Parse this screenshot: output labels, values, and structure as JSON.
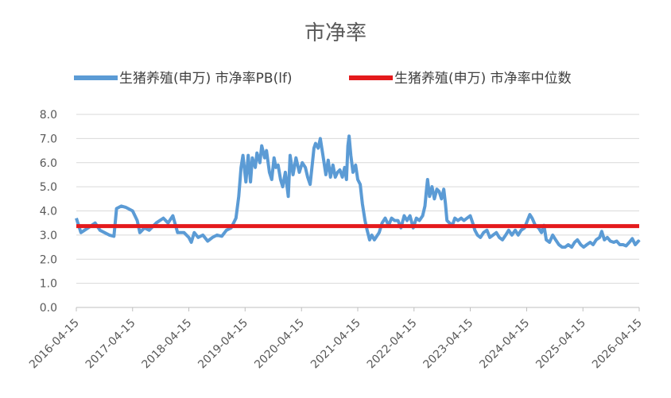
{
  "chart_data": {
    "type": "line",
    "title": "市净率",
    "xlabel": "",
    "ylabel": "",
    "ylim": [
      0,
      8
    ],
    "y_ticks": [
      "0.0",
      "1.0",
      "2.0",
      "3.0",
      "4.0",
      "5.0",
      "6.0",
      "7.0",
      "8.0"
    ],
    "x_range": [
      "2016-04-15",
      "2026-04-15"
    ],
    "x_ticks": [
      "2016-04-15",
      "2017-04-15",
      "2018-04-15",
      "2019-04-15",
      "2020-04-15",
      "2021-04-15",
      "2022-04-15",
      "2023-04-15",
      "2024-04-15",
      "2025-04-15",
      "2026-04-15"
    ],
    "grid": "horizontal",
    "legend_position": "top",
    "series": [
      {
        "name": "生猪养殖(申万) 市净率PB(lf)",
        "color": "#5B9BD5",
        "points": [
          [
            "2016-04-15",
            3.7
          ],
          [
            "2016-05-15",
            3.1
          ],
          [
            "2016-07-01",
            3.3
          ],
          [
            "2016-08-15",
            3.5
          ],
          [
            "2016-09-15",
            3.2
          ],
          [
            "2016-10-15",
            3.1
          ],
          [
            "2016-11-15",
            3.0
          ],
          [
            "2016-12-15",
            2.95
          ],
          [
            "2017-01-01",
            4.1
          ],
          [
            "2017-02-01",
            4.2
          ],
          [
            "2017-03-01",
            4.15
          ],
          [
            "2017-04-15",
            4.0
          ],
          [
            "2017-05-15",
            3.6
          ],
          [
            "2017-06-01",
            3.1
          ],
          [
            "2017-07-01",
            3.3
          ],
          [
            "2017-08-01",
            3.2
          ],
          [
            "2017-09-15",
            3.5
          ],
          [
            "2017-11-01",
            3.7
          ],
          [
            "2017-12-01",
            3.5
          ],
          [
            "2018-01-01",
            3.8
          ],
          [
            "2018-02-01",
            3.1
          ],
          [
            "2018-03-15",
            3.1
          ],
          [
            "2018-04-15",
            2.9
          ],
          [
            "2018-05-01",
            2.7
          ],
          [
            "2018-05-20",
            3.1
          ],
          [
            "2018-06-15",
            2.9
          ],
          [
            "2018-07-15",
            3.0
          ],
          [
            "2018-08-15",
            2.75
          ],
          [
            "2018-09-15",
            2.9
          ],
          [
            "2018-10-15",
            3.0
          ],
          [
            "2018-11-15",
            2.95
          ],
          [
            "2018-12-15",
            3.2
          ],
          [
            "2019-01-15",
            3.3
          ],
          [
            "2019-02-15",
            3.7
          ],
          [
            "2019-03-05",
            4.6
          ],
          [
            "2019-03-20",
            5.8
          ],
          [
            "2019-04-01",
            6.3
          ],
          [
            "2019-04-20",
            5.2
          ],
          [
            "2019-05-05",
            6.3
          ],
          [
            "2019-05-20",
            5.2
          ],
          [
            "2019-06-01",
            6.2
          ],
          [
            "2019-06-20",
            5.8
          ],
          [
            "2019-07-01",
            6.4
          ],
          [
            "2019-07-20",
            6.0
          ],
          [
            "2019-08-01",
            6.7
          ],
          [
            "2019-08-20",
            6.2
          ],
          [
            "2019-09-01",
            6.5
          ],
          [
            "2019-09-20",
            5.6
          ],
          [
            "2019-10-05",
            5.3
          ],
          [
            "2019-10-20",
            6.2
          ],
          [
            "2019-11-01",
            5.8
          ],
          [
            "2019-11-15",
            5.9
          ],
          [
            "2019-12-01",
            5.3
          ],
          [
            "2019-12-15",
            5.0
          ],
          [
            "2020-01-01",
            5.6
          ],
          [
            "2020-01-20",
            4.6
          ],
          [
            "2020-02-01",
            6.3
          ],
          [
            "2020-02-20",
            5.5
          ],
          [
            "2020-03-10",
            6.2
          ],
          [
            "2020-04-01",
            5.6
          ],
          [
            "2020-04-20",
            6.0
          ],
          [
            "2020-05-10",
            5.8
          ],
          [
            "2020-05-25",
            5.4
          ],
          [
            "2020-06-10",
            5.1
          ],
          [
            "2020-06-25",
            6.0
          ],
          [
            "2020-07-05",
            6.6
          ],
          [
            "2020-07-15",
            6.8
          ],
          [
            "2020-08-01",
            6.6
          ],
          [
            "2020-08-15",
            7.0
          ],
          [
            "2020-09-01",
            6.3
          ],
          [
            "2020-09-20",
            5.5
          ],
          [
            "2020-10-05",
            6.1
          ],
          [
            "2020-10-20",
            5.4
          ],
          [
            "2020-11-05",
            5.9
          ],
          [
            "2020-11-20",
            5.4
          ],
          [
            "2020-12-05",
            5.6
          ],
          [
            "2020-12-20",
            5.7
          ],
          [
            "2021-01-05",
            5.4
          ],
          [
            "2021-01-20",
            5.8
          ],
          [
            "2021-02-01",
            5.3
          ],
          [
            "2021-02-10",
            6.7
          ],
          [
            "2021-02-18",
            7.1
          ],
          [
            "2021-03-01",
            6.3
          ],
          [
            "2021-03-15",
            5.6
          ],
          [
            "2021-04-01",
            5.9
          ],
          [
            "2021-04-15",
            5.3
          ],
          [
            "2021-05-01",
            5.1
          ],
          [
            "2021-05-15",
            4.3
          ],
          [
            "2021-06-01",
            3.6
          ],
          [
            "2021-06-15",
            3.2
          ],
          [
            "2021-07-01",
            2.8
          ],
          [
            "2021-07-15",
            3.0
          ],
          [
            "2021-08-01",
            2.8
          ],
          [
            "2021-09-01",
            3.1
          ],
          [
            "2021-09-20",
            3.5
          ],
          [
            "2021-10-10",
            3.7
          ],
          [
            "2021-11-01",
            3.4
          ],
          [
            "2021-11-20",
            3.7
          ],
          [
            "2021-12-10",
            3.6
          ],
          [
            "2022-01-01",
            3.6
          ],
          [
            "2022-01-20",
            3.3
          ],
          [
            "2022-02-10",
            3.8
          ],
          [
            "2022-03-01",
            3.6
          ],
          [
            "2022-03-20",
            3.8
          ],
          [
            "2022-04-10",
            3.3
          ],
          [
            "2022-04-30",
            3.7
          ],
          [
            "2022-05-20",
            3.6
          ],
          [
            "2022-06-10",
            3.8
          ],
          [
            "2022-06-25",
            4.2
          ],
          [
            "2022-07-05",
            4.9
          ],
          [
            "2022-07-12",
            5.3
          ],
          [
            "2022-07-25",
            4.6
          ],
          [
            "2022-08-10",
            5.0
          ],
          [
            "2022-08-25",
            4.5
          ],
          [
            "2022-09-10",
            4.9
          ],
          [
            "2022-09-25",
            4.8
          ],
          [
            "2022-10-10",
            4.5
          ],
          [
            "2022-10-25",
            4.9
          ],
          [
            "2022-11-05",
            4.3
          ],
          [
            "2022-11-15",
            3.6
          ],
          [
            "2022-12-01",
            3.5
          ],
          [
            "2022-12-20",
            3.4
          ],
          [
            "2023-01-05",
            3.7
          ],
          [
            "2023-01-25",
            3.6
          ],
          [
            "2023-02-15",
            3.7
          ],
          [
            "2023-03-05",
            3.6
          ],
          [
            "2023-03-25",
            3.7
          ],
          [
            "2023-04-15",
            3.8
          ],
          [
            "2023-05-01",
            3.5
          ],
          [
            "2023-05-15",
            3.2
          ],
          [
            "2023-06-01",
            3.0
          ],
          [
            "2023-06-20",
            2.9
          ],
          [
            "2023-07-10",
            3.1
          ],
          [
            "2023-08-01",
            3.2
          ],
          [
            "2023-08-20",
            2.9
          ],
          [
            "2023-09-10",
            3.0
          ],
          [
            "2023-10-01",
            3.1
          ],
          [
            "2023-10-20",
            2.9
          ],
          [
            "2023-11-10",
            2.8
          ],
          [
            "2023-12-01",
            3.0
          ],
          [
            "2023-12-20",
            3.2
          ],
          [
            "2024-01-10",
            3.0
          ],
          [
            "2024-02-01",
            3.2
          ],
          [
            "2024-02-20",
            3.0
          ],
          [
            "2024-03-10",
            3.2
          ],
          [
            "2024-04-01",
            3.3
          ],
          [
            "2024-04-20",
            3.6
          ],
          [
            "2024-05-05",
            3.85
          ],
          [
            "2024-05-20",
            3.7
          ],
          [
            "2024-06-10",
            3.4
          ],
          [
            "2024-07-01",
            3.3
          ],
          [
            "2024-07-20",
            3.1
          ],
          [
            "2024-08-05",
            3.4
          ],
          [
            "2024-08-20",
            2.8
          ],
          [
            "2024-09-10",
            2.7
          ],
          [
            "2024-10-01",
            3.0
          ],
          [
            "2024-10-20",
            2.8
          ],
          [
            "2024-11-10",
            2.6
          ],
          [
            "2024-12-01",
            2.5
          ],
          [
            "2024-12-20",
            2.5
          ],
          [
            "2025-01-10",
            2.6
          ],
          [
            "2025-02-01",
            2.5
          ],
          [
            "2025-02-20",
            2.7
          ],
          [
            "2025-03-10",
            2.8
          ],
          [
            "2025-04-01",
            2.6
          ],
          [
            "2025-04-20",
            2.5
          ],
          [
            "2025-05-10",
            2.6
          ],
          [
            "2025-06-01",
            2.7
          ],
          [
            "2025-06-20",
            2.6
          ],
          [
            "2025-07-10",
            2.8
          ],
          [
            "2025-08-01",
            2.9
          ],
          [
            "2025-08-15",
            3.15
          ],
          [
            "2025-09-01",
            2.8
          ],
          [
            "2025-09-20",
            2.9
          ],
          [
            "2025-10-10",
            2.75
          ],
          [
            "2025-11-01",
            2.7
          ],
          [
            "2025-11-20",
            2.75
          ],
          [
            "2025-12-10",
            2.6
          ],
          [
            "2026-01-01",
            2.6
          ],
          [
            "2026-01-20",
            2.55
          ],
          [
            "2026-02-10",
            2.7
          ],
          [
            "2026-03-01",
            2.85
          ],
          [
            "2026-03-20",
            2.6
          ],
          [
            "2026-04-10",
            2.75
          ],
          [
            "2026-04-15",
            2.7
          ]
        ]
      },
      {
        "name": "生猪养殖(申万) 市净率中位数",
        "color": "#E41A1C",
        "points": [
          [
            "2016-04-15",
            3.37
          ],
          [
            "2026-04-15",
            3.37
          ]
        ]
      }
    ]
  }
}
